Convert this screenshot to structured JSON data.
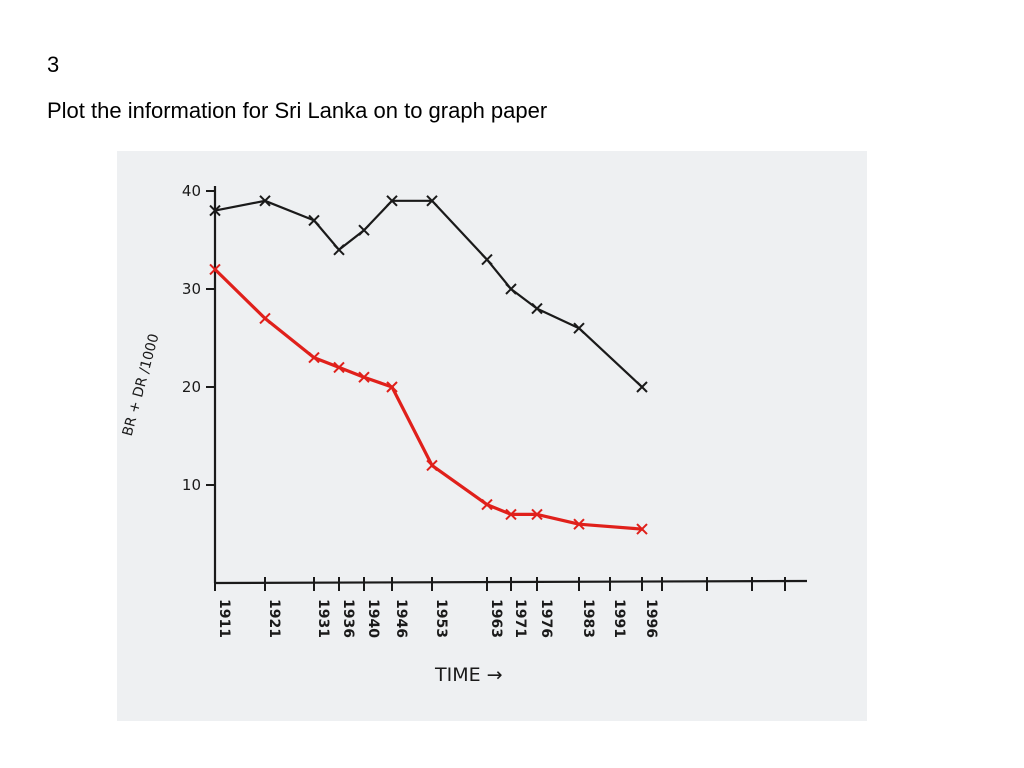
{
  "slide": {
    "number": "3",
    "text": "Plot the information for Sri Lanka on to graph paper"
  },
  "chart_data": {
    "type": "line",
    "title": "",
    "xlabel": "TIME →",
    "ylabel": "BR + DR /1000",
    "ylim": [
      0,
      40
    ],
    "y_ticks": [
      10,
      20,
      30,
      40
    ],
    "x_labels": [
      "1911",
      "1921",
      "1931",
      "1936",
      "1940",
      "1946",
      "1953",
      "1963",
      "1971",
      "1976",
      "1983",
      "1991",
      "1996"
    ],
    "series": [
      {
        "color": "#1a1a1a",
        "x": [
          1911,
          1921,
          1931,
          1936,
          1940,
          1946,
          1953,
          1963,
          1971,
          1976,
          1983,
          1996
        ],
        "values": [
          38,
          39,
          37,
          34,
          36,
          39,
          39,
          33,
          30,
          28,
          26,
          20
        ]
      },
      {
        "color": "#e0201b",
        "x": [
          1911,
          1921,
          1931,
          1936,
          1940,
          1946,
          1953,
          1963,
          1971,
          1976,
          1983,
          1996
        ],
        "values": [
          32,
          27,
          23,
          22,
          21,
          20,
          12,
          8,
          7,
          7,
          6,
          5.5
        ]
      }
    ]
  }
}
